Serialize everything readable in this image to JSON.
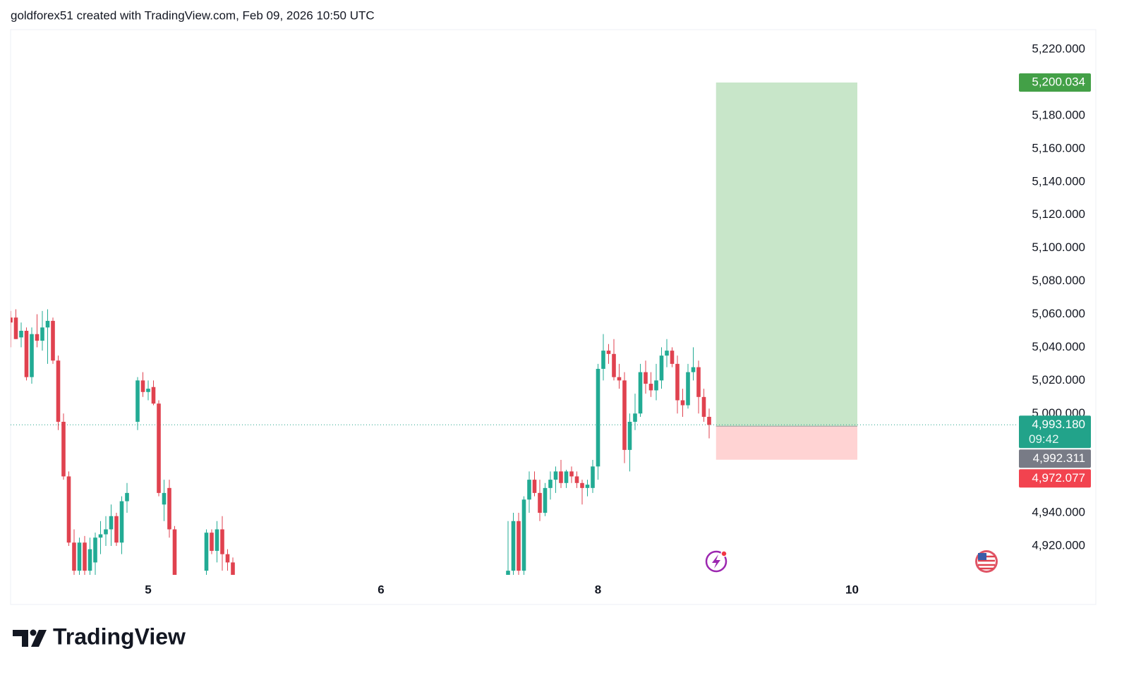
{
  "header": "goldforex51 created with TradingView.com, Feb 09, 2026 10:50 UTC",
  "logo": "TradingView",
  "chart_data": {
    "type": "candlestick",
    "up_color": "#22ab94",
    "down_color": "#e0424f",
    "xlim": [
      0,
      190
    ],
    "xticks": [
      {
        "value": 26,
        "label": "5"
      },
      {
        "value": 70,
        "label": "6"
      },
      {
        "value": 111,
        "label": "8"
      },
      {
        "value": 159,
        "label": "10"
      }
    ],
    "ylim": [
      4902.5,
      5232
    ],
    "yticks": [
      {
        "value": 5220,
        "label": "5,220.000"
      },
      {
        "value": 5180,
        "label": "5,180.000"
      },
      {
        "value": 5160,
        "label": "5,160.000"
      },
      {
        "value": 5140,
        "label": "5,140.000"
      },
      {
        "value": 5120,
        "label": "5,120.000"
      },
      {
        "value": 5100,
        "label": "5,100.000"
      },
      {
        "value": 5080,
        "label": "5,080.000"
      },
      {
        "value": 5060,
        "label": "5,060.000"
      },
      {
        "value": 5040,
        "label": "5,040.000"
      },
      {
        "value": 5020,
        "label": "5,020.000"
      },
      {
        "value": 5000,
        "label": "5,000.000"
      },
      {
        "value": 4940,
        "label": "4,940.000"
      },
      {
        "value": 4920,
        "label": "4,920.000"
      }
    ],
    "x": [
      0,
      1,
      2,
      3,
      4,
      5,
      6,
      7,
      8,
      9,
      10,
      11,
      12,
      13,
      14,
      15,
      16,
      17,
      18,
      19,
      20,
      21,
      22,
      24,
      25,
      26,
      27,
      28,
      29,
      30,
      31,
      37,
      38,
      39,
      40,
      41,
      42,
      94,
      95,
      96,
      97,
      98,
      99,
      100,
      101,
      102,
      103,
      104,
      105,
      106,
      107,
      108,
      109,
      110,
      111,
      112,
      113,
      114,
      115,
      116,
      117,
      118,
      119,
      120,
      121,
      122,
      123,
      124,
      125,
      126,
      127,
      128,
      129,
      130,
      131,
      132
    ],
    "open": [
      5058,
      5058,
      5046,
      5050,
      5022,
      5048,
      5044,
      5052,
      5056,
      5032,
      4995,
      4962,
      4922,
      4905,
      4922,
      4905,
      4910,
      4925,
      4927,
      4930,
      4938,
      4922,
      4947,
      4995,
      5020,
      5013,
      5016,
      5006,
      4945,
      4955,
      4930,
      4905,
      4928,
      4917,
      4930,
      4915,
      4910,
      4902,
      4905,
      4935,
      4905,
      4948,
      4960,
      4952,
      4940,
      4955,
      4960,
      4965,
      4958,
      4965,
      4962,
      4958,
      4955,
      4955,
      4968,
      5027,
      5038,
      5036,
      5022,
      5020,
      4978,
      4995,
      5000,
      5025,
      5018,
      5014,
      5020,
      5035,
      5038,
      5030,
      5008,
      5005,
      5025,
      5028,
      5010,
      4998
    ],
    "high": [
      5062,
      5063,
      5055,
      5052,
      5052,
      5060,
      5062,
      5063,
      5058,
      5035,
      5000,
      4965,
      4930,
      4925,
      4926,
      4925,
      4928,
      4935,
      4938,
      4945,
      4940,
      4950,
      4958,
      5022,
      5025,
      5020,
      5020,
      5008,
      4960,
      4960,
      4932,
      4930,
      4930,
      4935,
      4938,
      4918,
      4913,
      4935,
      4940,
      4940,
      4950,
      4965,
      4965,
      4960,
      4958,
      4965,
      4968,
      4972,
      4966,
      4968,
      4965,
      4960,
      4960,
      4972,
      5030,
      5048,
      5042,
      5045,
      5030,
      5025,
      5000,
      5012,
      5030,
      5032,
      5025,
      5030,
      5040,
      5045,
      5040,
      5035,
      5015,
      5030,
      5040,
      5032,
      5015,
      5003
    ],
    "low": [
      5040,
      5045,
      5040,
      5020,
      5018,
      5040,
      5038,
      5030,
      5030,
      4990,
      4960,
      4920,
      4900,
      4900,
      4900,
      4900,
      4900,
      4915,
      4920,
      4920,
      4920,
      4915,
      4940,
      4990,
      5010,
      5008,
      5005,
      4950,
      4935,
      4925,
      4900,
      4900,
      4915,
      4910,
      4905,
      4905,
      4900,
      4900,
      4900,
      4902,
      4900,
      4940,
      4950,
      4935,
      4938,
      4948,
      4952,
      4955,
      4955,
      4958,
      4955,
      4945,
      4950,
      4952,
      4960,
      5020,
      5030,
      5020,
      5015,
      4970,
      4965,
      4990,
      4998,
      5012,
      5010,
      5008,
      5015,
      5028,
      5028,
      5000,
      4998,
      5003,
      5020,
      5000,
      4995,
      4985
    ],
    "close": [
      5055,
      5045,
      5050,
      5022,
      5048,
      5044,
      5052,
      5056,
      5032,
      4995,
      4962,
      4922,
      4905,
      4922,
      4905,
      4918,
      4925,
      4927,
      4930,
      4938,
      4922,
      4947,
      4952,
      5020,
      5013,
      5015,
      5006,
      4952,
      4952,
      4930,
      4902,
      4928,
      4917,
      4930,
      4915,
      4910,
      4902,
      4905,
      4935,
      4905,
      4948,
      4960,
      4952,
      4940,
      4955,
      4960,
      4965,
      4958,
      4965,
      4962,
      4958,
      4955,
      4957,
      4968,
      5027,
      5038,
      5036,
      5022,
      5020,
      4978,
      4995,
      5000,
      5025,
      5018,
      5014,
      5020,
      5035,
      5038,
      5030,
      5008,
      5005,
      5025,
      5028,
      5010,
      4998,
      4993.18
    ],
    "price_labels": [
      {
        "value": 5200.034,
        "label": "5,200.034",
        "color": "#43a047"
      },
      {
        "value": 4993.18,
        "label": "4,993.180",
        "sublabel": "09:42",
        "color": "#22a38a"
      },
      {
        "value": 4992.311,
        "label": "4,992.311",
        "color": "#787b86"
      },
      {
        "value": 4972.077,
        "label": "4,972.077",
        "color": "#f2434f"
      }
    ],
    "position_x": [
      133.3,
      160
    ]
  }
}
